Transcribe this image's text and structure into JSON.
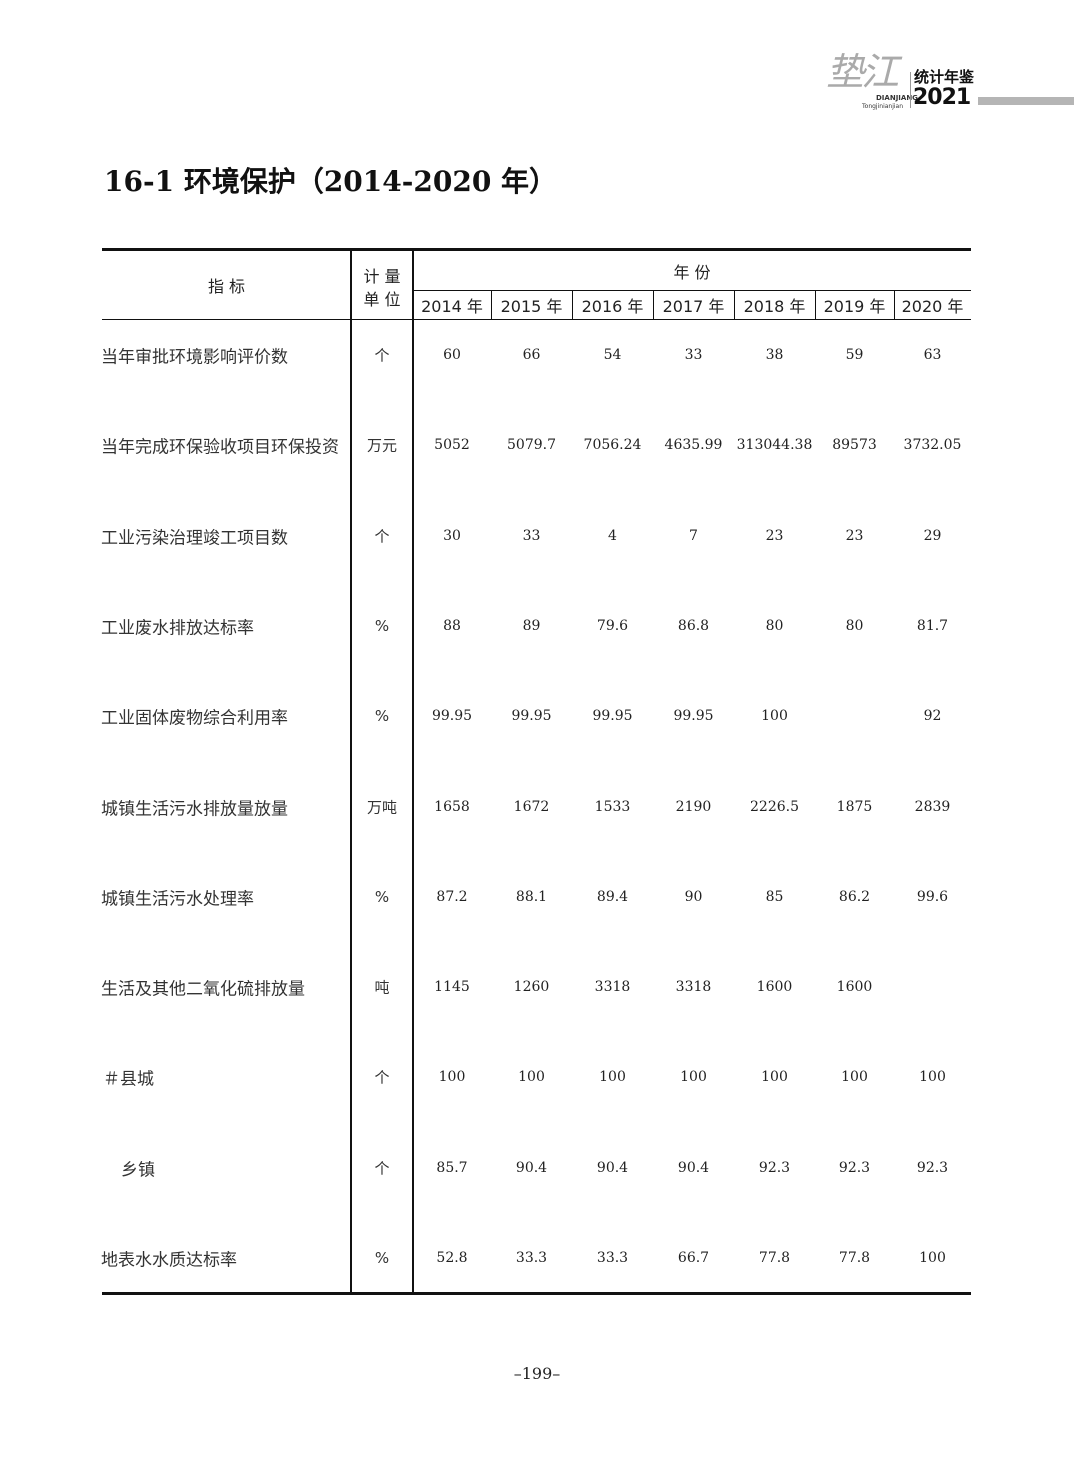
{
  "header": {
    "logo_brush": "垫江",
    "logo_pinyin": "DIANJIANG",
    "logo_pinyin2": "Tongjinianjian",
    "logo_title": "统计年鉴",
    "logo_year": "2021"
  },
  "title": "16-1  环境保护（2014-2020 年）",
  "table": {
    "col_indicator": "指  标",
    "col_unit_1": "计  量",
    "col_unit_2": "单  位",
    "col_year_group": "年  份",
    "years": [
      "2014 年",
      "2015 年",
      "2016 年",
      "2017 年",
      "2018 年",
      "2019 年",
      "2020 年"
    ],
    "rows": [
      {
        "label": "当年审批环境影响评价数",
        "unit": "个",
        "values": [
          "60",
          "66",
          "54",
          "33",
          "38",
          "59",
          "63"
        ]
      },
      {
        "label": "当年完成环保验收项目环保投资",
        "unit": "万元",
        "values": [
          "5052",
          "5079.7",
          "7056.24",
          "4635.99",
          "313044.38",
          "89573",
          "3732.05"
        ]
      },
      {
        "label": "工业污染治理竣工项目数",
        "unit": "个",
        "values": [
          "30",
          "33",
          "4",
          "7",
          "23",
          "23",
          "29"
        ]
      },
      {
        "label": "工业废水排放达标率",
        "unit": "%",
        "values": [
          "88",
          "89",
          "79.6",
          "86.8",
          "80",
          "80",
          "81.7"
        ]
      },
      {
        "label": "工业固体废物综合利用率",
        "unit": "%",
        "values": [
          "99.95",
          "99.95",
          "99.95",
          "99.95",
          "100",
          "",
          "92"
        ]
      },
      {
        "label": "城镇生活污水排放量放量",
        "unit": "万吨",
        "values": [
          "1658",
          "1672",
          "1533",
          "2190",
          "2226.5",
          "1875",
          "2839"
        ]
      },
      {
        "label": "城镇生活污水处理率",
        "unit": "%",
        "values": [
          "87.2",
          "88.1",
          "89.4",
          "90",
          "85",
          "86.2",
          "99.6"
        ]
      },
      {
        "label": "生活及其他二氧化硫排放量",
        "unit": "吨",
        "values": [
          "1145",
          "1260",
          "3318",
          "3318",
          "1600",
          "1600",
          ""
        ]
      },
      {
        "label": "＃县城",
        "unit": "个",
        "values": [
          "100",
          "100",
          "100",
          "100",
          "100",
          "100",
          "100"
        ]
      },
      {
        "label": "乡镇",
        "unit": "个",
        "values": [
          "85.7",
          "90.4",
          "90.4",
          "90.4",
          "92.3",
          "92.3",
          "92.3"
        ]
      },
      {
        "label": "地表水水质达标率",
        "unit": "%",
        "values": [
          "52.8",
          "33.3",
          "33.3",
          "66.7",
          "77.8",
          "77.8",
          "100"
        ]
      }
    ]
  },
  "page_number": "–199–"
}
